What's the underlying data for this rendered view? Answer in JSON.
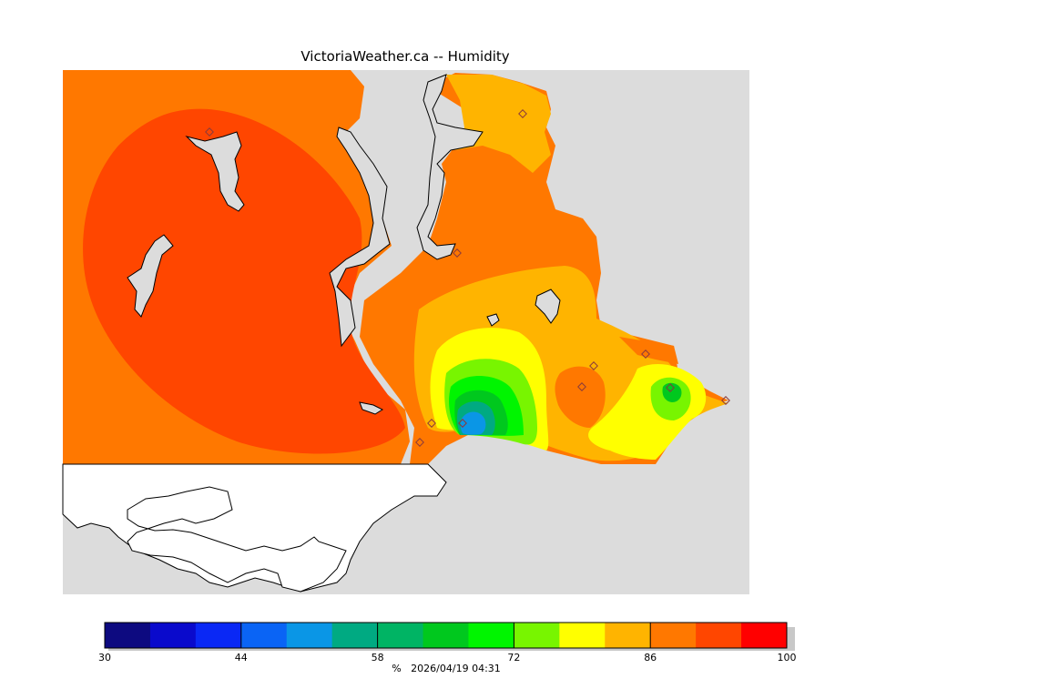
{
  "title": "VictoriaWeather.ca -- Humidity",
  "colors": {
    "land": "#dcdcdc",
    "water": "#ffffff",
    "coast": "#000000",
    "station_marker": "#a0522d"
  },
  "legend": {
    "colors": [
      "#0d0a80",
      "#0a0acc",
      "#0a28f5",
      "#0a64f5",
      "#0a96e6",
      "#00aa82",
      "#00b464",
      "#00c81e",
      "#00f500",
      "#78f500",
      "#ffff00",
      "#ffb400",
      "#ff7800",
      "#ff4600",
      "#ff0000"
    ],
    "tick_labels": [
      "30",
      "44",
      "58",
      "72",
      "86",
      "100"
    ],
    "min": 30,
    "max": 100,
    "unit": "%"
  },
  "footer": {
    "unit": "%",
    "timestamp": "2026/04/19 04:31"
  }
}
